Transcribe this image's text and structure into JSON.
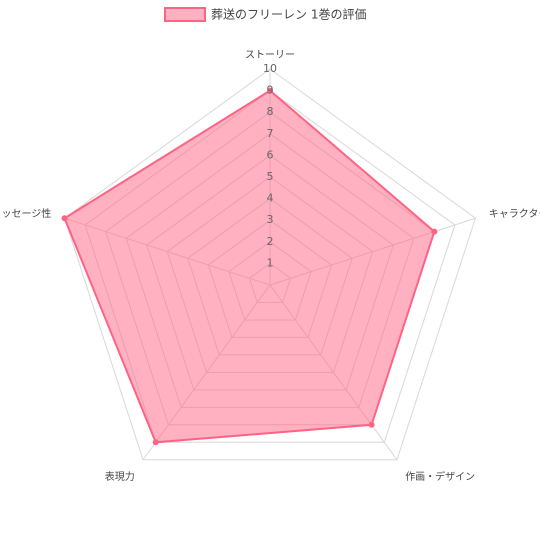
{
  "chart_data": {
    "type": "radar",
    "categories": [
      "ストーリー",
      "キャラクター",
      "作画・デザイン",
      "表現力",
      "メッセージ性"
    ],
    "series": [
      {
        "name": "葬送のフリーレン 1巻の評価",
        "color": "#ff6384",
        "values": [
          9,
          8,
          8,
          9,
          10
        ]
      }
    ],
    "ylim": [
      0,
      10
    ],
    "yticks": [
      1,
      2,
      3,
      4,
      5,
      6,
      7,
      8,
      9,
      10
    ],
    "grid": true,
    "legend": "top"
  }
}
